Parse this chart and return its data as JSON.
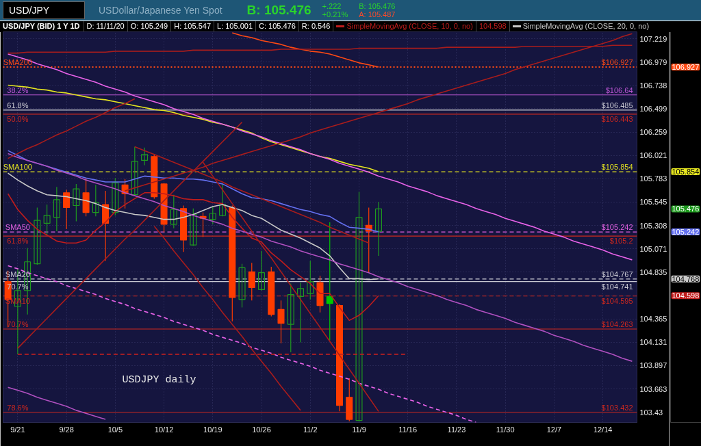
{
  "chart_data": {
    "type": "candlestick",
    "title": "USD/JPY (BID) 1 Y 1D",
    "subtitle": "USDollar/Japanese Yen Spot",
    "annotations": [
      "USD/JPY",
      "B: 105.476",
      "+.222",
      "+0.21%",
      "B: 105.476",
      "A: 105.487",
      "D: 11/11/20",
      "O: 105.249",
      "H: 105.547",
      "L: 105.001",
      "C: 105.476",
      "R: 0.546",
      "104.598",
      "USDJPY daily",
      "106.927",
      "105.854",
      "105.476",
      "105.242",
      "104.768",
      "104.598",
      {
        "text": "SMA200",
        "x": "9/21",
        "y": 106.927
      },
      {
        "text": "38.2%",
        "x": "9/21",
        "y": 106.64
      },
      {
        "text": "61.8%",
        "x": "9/21",
        "y": 106.485
      },
      {
        "text": "50.0%",
        "x": "9/21",
        "y": 106.443
      },
      {
        "text": "SMA100",
        "x": "9/21",
        "y": 105.854
      },
      {
        "text": "SMA50",
        "x": "9/21",
        "y": 105.242
      },
      {
        "text": "61.8%",
        "x": "9/21",
        "y": 105.2
      },
      {
        "text": "SMA20",
        "x": "9/21",
        "y": 104.767
      },
      {
        "text": "70.7%",
        "x": "9/21",
        "y": 104.741
      },
      {
        "text": "SMA10",
        "x": "9/21",
        "y": 104.595
      },
      {
        "text": "70.7%",
        "x": "9/21",
        "y": 104.263
      },
      {
        "text": "78.6%",
        "x": "9/21",
        "y": 103.432
      }
    ],
    "categories": [
      null,
      "9/21",
      null,
      null,
      null,
      null,
      "9/28",
      null,
      null,
      null,
      null,
      "10/5",
      null,
      null,
      null,
      null,
      "10/12",
      null,
      null,
      null,
      null,
      "10/19",
      null,
      null,
      null,
      null,
      "10/26",
      null,
      null,
      null,
      null,
      "11/2",
      null,
      null,
      null,
      null,
      "11/9",
      null,
      null,
      null,
      null,
      "11/16",
      null,
      null,
      null,
      null,
      "11/23",
      null,
      null,
      null,
      null,
      "11/30",
      null,
      null,
      null,
      null,
      "12/7",
      null,
      null,
      null,
      null,
      "12/14",
      null,
      null,
      null
    ],
    "ohlc": [
      [
        104.74,
        104.85,
        104.28,
        104.56
      ],
      [
        104.49,
        104.87,
        104.01,
        104.65
      ],
      [
        104.65,
        105.08,
        104.41,
        104.94
      ],
      [
        104.92,
        105.49,
        104.91,
        105.36
      ],
      [
        105.33,
        105.52,
        105.21,
        105.41
      ],
      [
        105.39,
        105.7,
        105.25,
        105.57
      ],
      [
        105.64,
        105.67,
        105.27,
        105.49
      ],
      [
        105.51,
        105.73,
        105.35,
        105.68
      ],
      [
        105.64,
        105.79,
        105.4,
        105.44
      ],
      [
        105.44,
        105.72,
        105.4,
        105.54
      ],
      [
        105.52,
        105.66,
        104.95,
        105.33
      ],
      [
        105.44,
        105.79,
        105.41,
        105.74
      ],
      [
        105.72,
        105.78,
        105.48,
        105.63
      ],
      [
        105.62,
        106.11,
        105.61,
        105.96
      ],
      [
        105.97,
        106.1,
        105.92,
        106.03
      ],
      [
        106.01,
        106.03,
        105.58,
        105.6
      ],
      [
        105.73,
        105.74,
        105.24,
        105.32
      ],
      [
        105.32,
        105.62,
        105.28,
        105.47
      ],
      [
        105.48,
        105.51,
        105.04,
        105.16
      ],
      [
        105.11,
        105.48,
        105.1,
        105.42
      ],
      [
        105.4,
        105.44,
        105.19,
        105.38
      ],
      [
        105.37,
        105.5,
        105.32,
        105.43
      ],
      [
        105.41,
        105.73,
        105.4,
        105.52
      ],
      [
        105.49,
        105.51,
        104.34,
        104.58
      ],
      [
        104.56,
        104.92,
        104.48,
        104.88
      ],
      [
        104.84,
        104.93,
        104.55,
        104.68
      ],
      [
        104.66,
        105.05,
        104.65,
        104.83
      ],
      [
        104.84,
        104.89,
        104.39,
        104.41
      ],
      [
        104.46,
        104.55,
        104.12,
        104.32
      ],
      [
        104.31,
        104.72,
        104.03,
        104.61
      ],
      [
        104.59,
        104.73,
        104.13,
        104.67
      ],
      [
        104.62,
        104.95,
        104.56,
        104.74
      ],
      [
        104.73,
        104.8,
        104.43,
        104.5
      ],
      [
        104.59,
        105.34,
        104.15,
        104.52
      ],
      [
        104.5,
        104.51,
        103.44,
        103.5
      ],
      [
        103.58,
        103.77,
        103.34,
        103.36
      ],
      [
        103.35,
        105.65,
        103.34,
        105.39
      ],
      [
        105.31,
        105.49,
        104.83,
        105.25
      ],
      [
        105.249,
        105.547,
        105.001,
        105.476
      ],
      null,
      null,
      null,
      null,
      null,
      null,
      null,
      null,
      null,
      null,
      null,
      null,
      null,
      null,
      null,
      null,
      null,
      null,
      null,
      null,
      null,
      null,
      null,
      null,
      null,
      null
    ],
    "colors": [
      "#ff3c00",
      "#1f9a1f",
      "#1f9a1f",
      "#1f9a1f",
      "#1f9a1f",
      "#1f9a1f",
      "#ff3c00",
      "#1f9a1f",
      "#ff3c00",
      "#1f9a1f",
      "#ff3c00",
      "#1f9a1f",
      "#ff3c00",
      "#1f9a1f",
      "#1f9a1f",
      "#ff3c00",
      "#ff3c00",
      "#1f9a1f",
      "#ff3c00",
      "#1f9a1f",
      "#ff3c00",
      "#1f9a1f",
      "#1f9a1f",
      "#ff3c00",
      "#1f9a1f",
      "#ff3c00",
      "#1f9a1f",
      "#ff3c00",
      "#ff3c00",
      "#1f9a1f",
      "#1f9a1f",
      "#1f9a1f",
      "#ff3c00",
      "#00c800",
      "#ff3c00",
      "#ff3c00",
      "#1f9a1f",
      "#ff3c00",
      "#1f9a1f",
      null,
      null,
      null,
      null,
      null,
      null,
      null,
      null,
      null,
      null,
      null,
      null,
      null,
      null,
      null,
      null,
      null,
      null,
      null,
      null,
      null,
      null,
      null,
      null,
      null,
      null
    ],
    "series": [
      {
        "type": "line",
        "color": "#ff4a14",
        "values": [
          null,
          null,
          null,
          null,
          null,
          null,
          null,
          null,
          null,
          null,
          null,
          null,
          null,
          null,
          null,
          null,
          null,
          null,
          null,
          null,
          null,
          null,
          null,
          107.28,
          107.25,
          107.23,
          107.2,
          107.18,
          107.16,
          107.13,
          107.11,
          107.09,
          107.08,
          107.06,
          107.03,
          107.0,
          106.97,
          106.95,
          106.927,
          null,
          null,
          null,
          null,
          null,
          null,
          null,
          null,
          null,
          null,
          null,
          null,
          null,
          null,
          null,
          null,
          null,
          null,
          null,
          null,
          null,
          null,
          null,
          null,
          null,
          null
        ]
      },
      {
        "type": "line",
        "color": "#e6e620",
        "values": [
          106.74,
          106.73,
          106.72,
          106.7,
          106.69,
          106.67,
          106.66,
          106.64,
          106.62,
          106.6,
          106.59,
          106.57,
          106.55,
          106.53,
          106.51,
          106.49,
          106.48,
          106.46,
          106.43,
          106.41,
          106.39,
          106.36,
          106.34,
          106.31,
          106.28,
          106.25,
          106.2,
          106.16,
          106.13,
          106.1,
          106.07,
          106.04,
          106.01,
          105.99,
          105.96,
          105.93,
          105.91,
          105.89,
          105.854,
          null,
          null,
          null,
          null,
          null,
          null,
          null,
          null,
          null,
          null,
          null,
          null,
          null,
          null,
          null,
          null,
          null,
          null,
          null,
          null,
          null,
          null,
          null,
          null,
          null,
          null
        ]
      },
      {
        "type": "line",
        "color": "#6470f0",
        "values": [
          106.07,
          106.02,
          105.97,
          105.94,
          105.91,
          105.88,
          105.85,
          105.82,
          105.79,
          105.77,
          105.75,
          105.75,
          105.75,
          105.78,
          105.81,
          105.8,
          105.79,
          105.79,
          105.78,
          105.78,
          105.77,
          105.75,
          105.73,
          105.68,
          105.63,
          105.59,
          105.58,
          105.56,
          105.53,
          105.5,
          105.47,
          105.45,
          105.42,
          105.4,
          105.34,
          105.29,
          105.28,
          105.27,
          105.242,
          null,
          null,
          null,
          null,
          null,
          null,
          null,
          null,
          null,
          null,
          null,
          null,
          null,
          null,
          null,
          null,
          null,
          null,
          null,
          null,
          null,
          null,
          null,
          null,
          null,
          null
        ]
      },
      {
        "type": "line",
        "name": "SimpleMovingAvg (CLOSE, 10, 0, no)",
        "color": "#c01c1c",
        "values": [
          105.63,
          105.47,
          105.36,
          105.27,
          105.21,
          105.15,
          105.13,
          105.13,
          105.16,
          105.26,
          105.34,
          105.45,
          105.52,
          105.58,
          105.64,
          105.64,
          105.63,
          105.61,
          105.58,
          105.57,
          105.57,
          105.54,
          105.53,
          105.39,
          105.28,
          105.18,
          105.14,
          105.03,
          104.95,
          104.86,
          104.79,
          104.72,
          104.62,
          104.62,
          104.48,
          104.35,
          104.4,
          104.49,
          104.598,
          null,
          null,
          null,
          null,
          null,
          null,
          null,
          null,
          null,
          null,
          null,
          null,
          null,
          null,
          null,
          null,
          null,
          null,
          null,
          null,
          null,
          null,
          null,
          null,
          null,
          null
        ]
      },
      {
        "type": "line",
        "name": "SimpleMovingAvg (CLOSE, 20, 0, no)",
        "color": "#c8c8c8",
        "values": [
          105.84,
          105.77,
          105.71,
          105.66,
          105.62,
          105.61,
          105.6,
          105.58,
          105.56,
          105.53,
          105.49,
          105.46,
          105.44,
          105.42,
          105.41,
          105.39,
          105.37,
          105.37,
          105.39,
          105.42,
          105.46,
          105.5,
          105.52,
          105.49,
          105.46,
          105.41,
          105.38,
          105.32,
          105.26,
          105.22,
          105.18,
          105.13,
          105.08,
          105.0,
          104.88,
          104.77,
          104.77,
          104.76,
          104.768,
          null,
          null,
          null,
          null,
          null,
          null,
          null,
          null,
          null,
          null,
          null,
          null,
          null,
          null,
          null,
          null,
          null,
          null,
          null,
          null,
          null,
          null,
          null,
          null,
          null,
          null
        ]
      },
      {
        "type": "line",
        "color": "#e862e8",
        "values": [
          107.06,
          107.03,
          107.0,
          106.96,
          106.93,
          106.9,
          106.86,
          106.83,
          106.8,
          106.77,
          106.73,
          106.7,
          106.67,
          106.63,
          106.6,
          106.57,
          106.54,
          106.5,
          106.47,
          106.44,
          106.4,
          106.37,
          106.34,
          106.31,
          106.27,
          106.24,
          106.21,
          106.17,
          106.14,
          106.11,
          106.08,
          106.04,
          106.01,
          105.98,
          105.94,
          105.91,
          105.88,
          105.85,
          105.81,
          105.78,
          105.75,
          105.71,
          105.68,
          105.65,
          105.61,
          105.58,
          105.55,
          105.52,
          105.48,
          105.45,
          105.42,
          105.38,
          105.35,
          105.32,
          105.29,
          105.25,
          105.22,
          105.19,
          105.15,
          105.12,
          105.09,
          105.06,
          105.02,
          104.99,
          104.96
        ]
      },
      {
        "type": "line",
        "color": "#e862e8",
        "line_style": "dashed",
        "values": [
          104.9,
          104.87,
          104.83,
          104.8,
          104.77,
          104.74,
          104.7,
          104.67,
          104.64,
          104.61,
          104.57,
          104.54,
          104.51,
          104.47,
          104.44,
          104.41,
          104.38,
          104.34,
          104.31,
          104.28,
          104.25,
          104.21,
          104.18,
          104.15,
          104.12,
          104.08,
          104.05,
          104.02,
          103.98,
          103.95,
          103.92,
          103.89,
          103.85,
          103.82,
          103.79,
          103.76,
          103.72,
          103.69,
          103.66,
          103.62,
          103.59,
          103.56,
          103.53,
          103.49,
          103.46,
          103.43,
          103.4,
          103.36,
          103.33,
          null,
          null,
          null,
          null,
          null,
          null,
          null,
          null,
          null,
          null,
          null,
          null,
          null,
          null,
          null,
          null
        ]
      },
      {
        "type": "line",
        "color": "#b050c0",
        "values": [
          106.04,
          106.0,
          105.97,
          105.94,
          105.91,
          105.87,
          105.84,
          105.81,
          105.77,
          105.74,
          105.71,
          105.68,
          105.64,
          105.61,
          105.58,
          105.55,
          105.51,
          105.48,
          105.45,
          105.41,
          105.38,
          105.35,
          105.32,
          105.28,
          105.25,
          105.22,
          105.19,
          105.15,
          105.12,
          105.09,
          105.05,
          105.02,
          104.99,
          104.96,
          104.92,
          104.89,
          104.86,
          104.83,
          104.79,
          104.76,
          104.73,
          104.69,
          104.66,
          104.63,
          104.6,
          104.56,
          104.53,
          104.5,
          104.46,
          104.43,
          104.4,
          104.37,
          104.33,
          104.3,
          104.27,
          104.24,
          104.2,
          104.17,
          104.14,
          104.1,
          104.07,
          104.04,
          104.01,
          103.97,
          103.94
        ]
      },
      {
        "type": "line",
        "color": "#b050c0",
        "values": [
          103.68,
          103.65,
          103.62,
          103.58,
          103.55,
          103.52,
          103.49,
          103.45,
          103.42,
          103.39,
          103.36,
          null,
          null,
          null,
          null,
          null,
          null,
          null,
          null,
          null,
          null,
          null,
          null,
          null,
          null,
          null,
          null,
          null,
          null,
          null,
          null,
          null,
          null,
          null,
          null,
          null,
          null,
          null,
          null,
          null,
          null,
          null,
          null,
          null,
          null,
          null,
          null,
          null,
          null,
          null,
          null,
          null,
          null,
          null,
          null,
          null,
          null,
          null,
          null,
          null,
          null,
          null,
          null,
          null,
          null
        ]
      },
      {
        "type": "line",
        "color": "#a81c1c",
        "values": [
          107.07,
          107.07,
          107.08,
          107.08,
          107.08,
          107.08,
          107.08,
          107.08,
          107.08,
          107.08,
          107.08,
          107.09,
          107.09,
          107.09,
          107.09,
          107.09,
          107.09,
          107.09,
          107.09,
          107.1,
          107.1,
          107.1,
          107.1,
          107.1,
          107.1,
          107.1,
          107.1,
          107.1,
          107.11,
          107.11,
          107.11,
          107.11,
          107.11,
          107.11,
          107.11,
          107.11,
          107.12,
          107.12,
          107.12,
          107.12,
          107.12,
          107.12,
          107.12,
          107.12,
          107.12,
          107.13,
          107.13,
          107.13,
          107.13,
          107.13,
          107.13,
          107.13,
          107.13,
          107.14,
          107.14,
          107.14,
          107.14,
          107.14,
          107.14,
          107.14,
          107.14,
          107.14,
          107.15,
          107.15,
          107.15
        ]
      },
      {
        "type": "line",
        "color": "#c02020",
        "line_style": "dashed",
        "values": [
          null,
          104.01,
          104.01,
          104.01,
          104.01,
          104.01,
          104.01,
          104.01,
          104.01,
          104.01,
          104.01,
          104.01,
          104.01,
          104.01,
          104.01,
          104.01,
          104.01,
          104.01,
          104.01,
          104.01,
          104.01,
          104.01,
          104.01,
          104.01,
          104.01,
          104.01,
          104.01,
          104.01,
          104.01,
          104.01,
          104.01,
          104.01,
          104.01,
          104.01,
          104.01,
          104.01,
          104.01,
          104.01,
          104.01,
          104.01,
          104.01,
          104.01,
          null,
          null,
          null,
          null,
          null,
          null,
          null,
          null,
          null,
          null,
          null,
          null,
          null,
          null,
          null,
          null,
          null,
          null,
          null,
          null,
          null,
          null,
          null
        ]
      },
      {
        "type": "line",
        "color": "#a81c1c",
        "values": [
          null,
          104.07,
          104.17,
          104.27,
          104.37,
          104.47,
          104.57,
          104.67,
          104.77,
          104.87,
          104.97,
          105.07,
          105.17,
          105.26,
          105.36,
          105.46,
          105.56,
          105.66,
          105.76,
          105.86,
          105.96,
          106.06,
          106.16,
          106.26,
          106.36,
          null,
          null,
          null,
          null,
          null,
          null,
          null,
          null,
          null,
          null,
          null,
          null,
          null,
          null,
          null,
          null,
          null,
          null,
          null,
          null,
          null,
          null,
          null,
          null,
          null,
          null,
          null,
          null,
          null,
          null,
          null,
          null,
          null,
          null,
          null,
          null,
          null,
          null,
          null,
          null
        ]
      },
      {
        "type": "line",
        "color": "#a81c1c",
        "values": [
          105.99,
          106.04,
          106.09,
          106.13,
          106.18,
          106.23,
          106.27,
          106.32,
          106.37,
          106.41,
          106.46,
          106.51,
          106.55,
          106.6,
          null,
          null,
          null,
          null,
          null,
          null,
          null,
          null,
          null,
          null,
          null,
          null,
          null,
          null,
          null,
          null,
          null,
          null,
          null,
          null,
          null,
          null,
          null,
          null,
          null,
          null,
          null,
          null,
          null,
          null,
          null,
          null,
          null,
          null,
          null,
          null,
          null,
          null,
          null,
          null,
          null,
          null,
          null,
          null,
          null,
          null,
          null,
          null,
          null,
          null,
          null
        ]
      },
      {
        "type": "line",
        "color": "#a81c1c",
        "values": [
          null,
          null,
          null,
          null,
          null,
          null,
          null,
          null,
          null,
          null,
          null,
          null,
          105.66,
          105.69,
          105.72,
          105.75,
          105.78,
          105.81,
          105.84,
          105.87,
          105.9,
          105.94,
          105.97,
          106.0,
          106.03,
          106.06,
          106.09,
          106.12,
          106.15,
          106.18,
          106.21,
          106.25,
          106.28,
          106.31,
          106.34,
          106.37,
          106.4,
          106.43,
          106.46,
          106.49,
          106.52,
          106.55,
          106.59,
          106.62,
          106.65,
          106.68,
          106.71,
          106.74,
          106.77,
          106.8,
          106.83,
          106.86,
          106.9,
          106.93,
          106.96,
          106.99,
          107.02,
          107.05,
          107.08,
          107.11,
          107.14,
          107.17,
          107.2,
          107.24,
          107.27
        ]
      },
      {
        "type": "line",
        "color": "#a81c1c",
        "values": [
          null,
          null,
          null,
          null,
          null,
          null,
          null,
          null,
          null,
          null,
          null,
          null,
          null,
          106.11,
          106.07,
          106.03,
          105.99,
          105.95,
          105.91,
          105.87,
          105.83,
          105.79,
          105.75,
          105.7,
          105.66,
          105.62,
          105.58,
          105.54,
          105.5,
          105.46,
          105.42,
          105.38,
          105.34,
          105.29,
          105.25,
          105.21,
          105.17,
          105.13,
          null,
          null,
          null,
          null,
          null,
          null,
          null,
          null,
          null,
          null,
          null,
          null,
          null,
          null,
          null,
          null,
          null,
          null,
          null,
          null,
          null,
          null,
          null,
          null,
          null,
          null,
          null
        ]
      },
      {
        "type": "line",
        "color": "#a81c1c",
        "values": [
          null,
          null,
          null,
          null,
          null,
          null,
          null,
          null,
          null,
          null,
          null,
          null,
          null,
          null,
          null,
          105.3,
          105.18,
          105.05,
          104.93,
          104.81,
          104.68,
          104.56,
          104.43,
          104.31,
          104.19,
          104.06,
          103.94,
          103.82,
          103.69,
          103.57,
          103.45,
          null,
          null,
          null,
          null,
          null,
          null,
          null,
          null,
          null,
          null,
          null,
          null,
          null,
          null,
          null,
          null,
          null,
          null,
          null,
          null,
          null,
          null,
          null,
          null,
          null,
          null,
          null,
          null,
          null,
          null,
          null,
          null,
          null,
          null
        ]
      },
      {
        "type": "line",
        "color": "#a81c1c",
        "values": [
          null,
          null,
          null,
          null,
          null,
          null,
          null,
          null,
          null,
          null,
          null,
          null,
          null,
          null,
          null,
          null,
          null,
          null,
          null,
          null,
          105.95,
          105.81,
          105.67,
          105.53,
          105.39,
          105.25,
          105.11,
          104.98,
          104.84,
          104.7,
          104.56,
          104.42,
          104.28,
          104.14,
          104.0,
          103.86,
          103.72,
          103.58,
          103.44,
          null,
          null,
          null,
          null,
          null,
          null,
          null,
          null,
          null,
          null,
          null,
          null,
          null,
          null,
          null,
          null,
          null,
          null,
          null,
          null,
          null,
          null,
          null,
          null,
          null,
          null
        ]
      }
    ],
    "ref_lines": [
      {
        "axis": "y",
        "value": 106.927,
        "label": "$106.927",
        "color": "#ff4a14",
        "line_style": "dotted"
      },
      {
        "axis": "y",
        "value": 106.64,
        "label": "$106.64",
        "color": "#c058d8"
      },
      {
        "axis": "y",
        "value": 106.485,
        "label": "$106.485",
        "color": "#c8c8d2"
      },
      {
        "axis": "y",
        "value": 106.443,
        "label": "$106.443",
        "color": "#d0281e"
      },
      {
        "axis": "y",
        "value": 105.854,
        "label": "$105.854",
        "color": "#e0e020",
        "line_style": "dashed"
      },
      {
        "axis": "y",
        "value": 105.242,
        "label": "$105.242",
        "color": "#e060e0",
        "line_style": "dashed"
      },
      {
        "axis": "y",
        "value": 105.2,
        "label": "$105.2",
        "color": "#d0281e"
      },
      {
        "axis": "y",
        "value": 104.767,
        "label": "$104.767",
        "color": "#c8c8d2",
        "line_style": "dashed"
      },
      {
        "axis": "y",
        "value": 104.741,
        "label": "$104.741",
        "color": "#c8c8d2"
      },
      {
        "axis": "y",
        "value": 104.595,
        "label": "$104.595",
        "color": "#d0281e",
        "line_style": "dashed"
      },
      {
        "axis": "y",
        "value": 104.263,
        "label": "$104.263",
        "color": "#d0281e"
      },
      {
        "axis": "y",
        "value": 103.432,
        "label": "$103.432",
        "color": "#d0281e"
      }
    ],
    "ylim": [
      103.33,
      107.29
    ],
    "yticks": [
      107.219,
      106.979,
      106.738,
      106.499,
      106.259,
      106.021,
      105.783,
      105.545,
      105.308,
      105.071,
      104.835,
      {
        "value": 104.6,
        "label": null
      },
      104.365,
      104.131,
      103.897,
      103.663,
      103.43
    ],
    "log": true,
    "grid": true,
    "legend": "top"
  }
}
